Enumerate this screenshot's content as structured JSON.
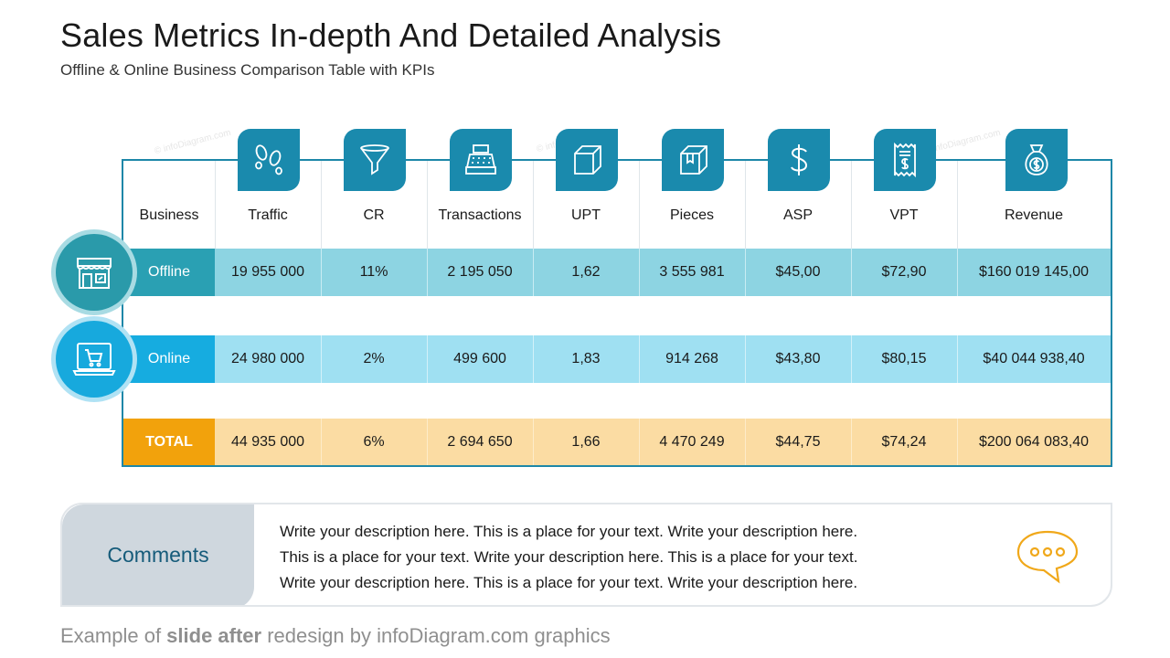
{
  "slide": {
    "title": "Sales Metrics In-depth And Detailed Analysis",
    "subtitle": "Offline & Online Business Comparison Table with KPIs"
  },
  "watermark": "© infoDiagram.com",
  "table": {
    "columns": [
      {
        "key": "business",
        "label": "Business",
        "icon": null
      },
      {
        "key": "traffic",
        "label": "Traffic",
        "icon": "footprints-icon"
      },
      {
        "key": "cr",
        "label": "CR",
        "icon": "funnel-icon"
      },
      {
        "key": "transactions",
        "label": "Transactions",
        "icon": "cash-register-icon"
      },
      {
        "key": "upt",
        "label": "UPT",
        "icon": "cube-icon"
      },
      {
        "key": "pieces",
        "label": "Pieces",
        "icon": "package-icon"
      },
      {
        "key": "asp",
        "label": "ASP",
        "icon": "dollar-icon"
      },
      {
        "key": "vpt",
        "label": "VPT",
        "icon": "receipt-icon"
      },
      {
        "key": "revenue",
        "label": "Revenue",
        "icon": "money-bag-icon"
      }
    ],
    "rows": [
      {
        "label": "Offline",
        "icon": "store-icon",
        "values": [
          "19 955 000",
          "11%",
          "2 195 050",
          "1,62",
          "3 555 981",
          "$45,00",
          "$72,90",
          "$160 019 145,00"
        ]
      },
      {
        "label": "Online",
        "icon": "online-shop-icon",
        "values": [
          "24 980 000",
          "2%",
          "499 600",
          "1,83",
          "914 268",
          "$43,80",
          "$80,15",
          "$40 044 938,40"
        ]
      },
      {
        "label": "TOTAL",
        "icon": null,
        "values": [
          "44 935 000",
          "6%",
          "2 694 650",
          "1,66",
          "4 470 249",
          "$44,75",
          "$74,24",
          "$200 064 083,40"
        ]
      }
    ]
  },
  "comments": {
    "label": "Comments",
    "lines": [
      "Write your description here. This is a place for your text. Write your description here.",
      "This is a place for your text. Write your description here. This is a place for your text.",
      "Write your description here. This is a place for your text. Write your description here."
    ],
    "icon": "speech-bubble-icon"
  },
  "footer": {
    "prefix": "Example of ",
    "bold": "slide after",
    "suffix": " redesign by infoDiagram.com graphics"
  },
  "colors": {
    "accent": "#1a8aad",
    "offline_label": "#2aa0b3",
    "offline_row": "#8dd4e2",
    "online_label": "#16ace0",
    "online_row": "#9fe0f2",
    "total_label": "#f2a20c",
    "total_row": "#fbdca3"
  }
}
